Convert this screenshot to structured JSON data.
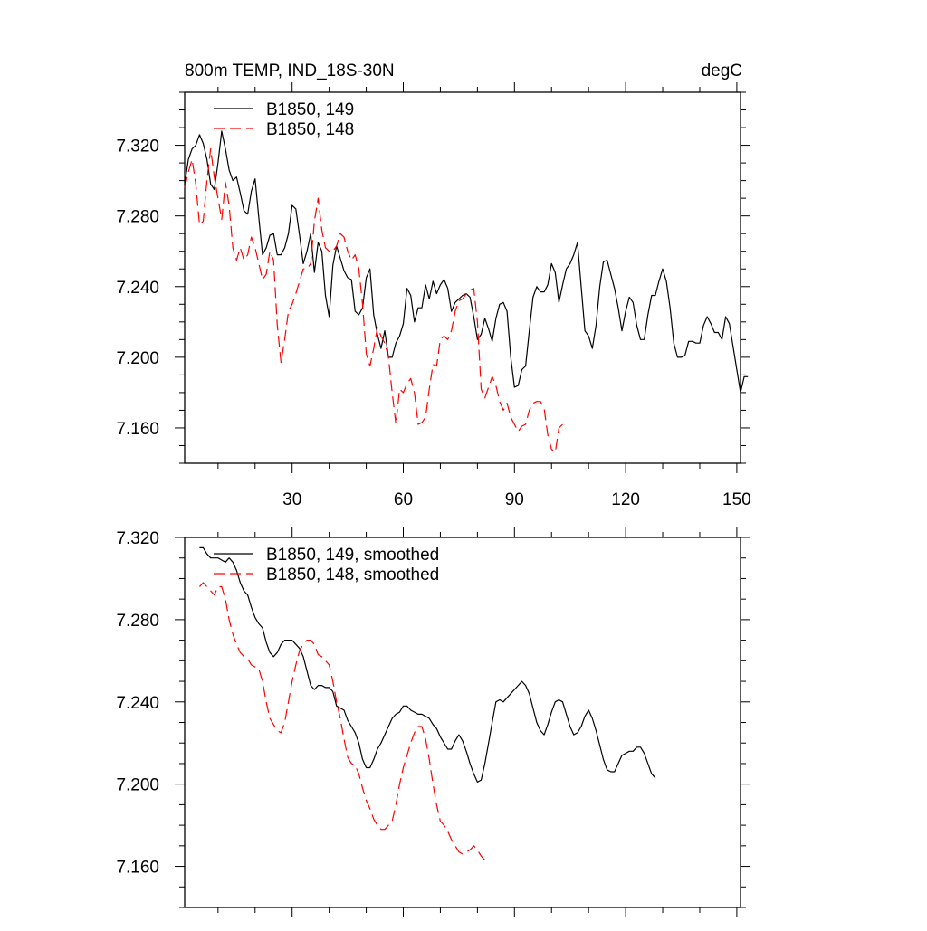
{
  "header": {
    "title_left": "800m TEMP, IND_18S-30N",
    "title_right": "degC"
  },
  "colors": {
    "series_149": "#000000",
    "series_148": "#ff0000",
    "axis": "#000000",
    "background": "#ffffff"
  },
  "chart_data": [
    {
      "type": "line",
      "title": "800m TEMP, IND_18S-30N",
      "units": "degC",
      "xlim": [
        1,
        151
      ],
      "ylim": [
        7.14,
        7.35
      ],
      "xticks": [
        30,
        60,
        90,
        120,
        150
      ],
      "xtick_labels": [
        "30",
        "60",
        "90",
        "120",
        "150"
      ],
      "yticks": [
        7.16,
        7.2,
        7.24,
        7.28,
        7.32
      ],
      "ytick_labels": [
        "7.160",
        "7.200",
        "7.240",
        "7.280",
        "7.320"
      ],
      "legend_position": "top-left",
      "grid": false,
      "series": [
        {
          "name": "B1850, 149",
          "color": "#000000",
          "dash": "solid",
          "x_start": 1,
          "values": [
            7.298,
            7.312,
            7.318,
            7.32,
            7.326,
            7.321,
            7.312,
            7.298,
            7.295,
            7.31,
            7.328,
            7.318,
            7.306,
            7.3,
            7.302,
            7.293,
            7.283,
            7.281,
            7.294,
            7.301,
            7.279,
            7.258,
            7.262,
            7.269,
            7.27,
            7.258,
            7.258,
            7.262,
            7.27,
            7.286,
            7.284,
            7.269,
            7.253,
            7.26,
            7.27,
            7.248,
            7.265,
            7.26,
            7.235,
            7.223,
            7.252,
            7.263,
            7.256,
            7.249,
            7.245,
            7.244,
            7.226,
            7.224,
            7.228,
            7.245,
            7.25,
            7.224,
            7.213,
            7.205,
            7.215,
            7.2,
            7.2,
            7.208,
            7.212,
            7.219,
            7.239,
            7.235,
            7.22,
            7.228,
            7.228,
            7.241,
            7.233,
            7.243,
            7.236,
            7.241,
            7.244,
            7.239,
            7.226,
            7.231,
            7.233,
            7.235,
            7.236,
            7.234,
            7.223,
            7.21,
            7.213,
            7.222,
            7.216,
            7.209,
            7.222,
            7.23,
            7.231,
            7.226,
            7.2,
            7.183,
            7.184,
            7.193,
            7.195,
            7.215,
            7.234,
            7.24,
            7.237,
            7.237,
            7.241,
            7.253,
            7.248,
            7.231,
            7.241,
            7.25,
            7.253,
            7.258,
            7.265,
            7.24,
            7.215,
            7.212,
            7.205,
            7.218,
            7.24,
            7.254,
            7.255,
            7.247,
            7.239,
            7.228,
            7.215,
            7.226,
            7.234,
            7.231,
            7.218,
            7.21,
            7.21,
            7.224,
            7.235,
            7.235,
            7.243,
            7.25,
            7.243,
            7.228,
            7.208,
            7.2,
            7.2,
            7.201,
            7.209,
            7.209,
            7.208,
            7.208,
            7.218,
            7.223,
            7.219,
            7.214,
            7.214,
            7.21,
            7.223,
            7.219,
            7.206,
            7.193,
            7.18,
            7.189,
            7.189
          ]
        },
        {
          "name": "B1850, 148",
          "color": "#ff0000",
          "dash": "dashed",
          "x_start": 1,
          "values": [
            7.296,
            7.305,
            7.312,
            7.298,
            7.275,
            7.277,
            7.3,
            7.318,
            7.302,
            7.29,
            7.278,
            7.299,
            7.286,
            7.262,
            7.255,
            7.262,
            7.255,
            7.258,
            7.268,
            7.262,
            7.253,
            7.244,
            7.247,
            7.26,
            7.255,
            7.218,
            7.197,
            7.21,
            7.226,
            7.23,
            7.236,
            7.243,
            7.25,
            7.25,
            7.253,
            7.277,
            7.29,
            7.272,
            7.262,
            7.26,
            7.26,
            7.263,
            7.27,
            7.268,
            7.26,
            7.255,
            7.258,
            7.25,
            7.23,
            7.202,
            7.195,
            7.205,
            7.217,
            7.212,
            7.208,
            7.2,
            7.18,
            7.162,
            7.182,
            7.18,
            7.185,
            7.188,
            7.18,
            7.162,
            7.163,
            7.166,
            7.182,
            7.196,
            7.195,
            7.21,
            7.212,
            7.21,
            7.215,
            7.226,
            7.232,
            7.233,
            7.236,
            7.238,
            7.239,
            7.22,
            7.182,
            7.177,
            7.183,
            7.189,
            7.184,
            7.175,
            7.17,
            7.174,
            7.166,
            7.162,
            7.158,
            7.161,
            7.162,
            7.17,
            7.174,
            7.175,
            7.175,
            7.171,
            7.156,
            7.148,
            7.146,
            7.16,
            7.162
          ]
        }
      ]
    },
    {
      "type": "line",
      "xlim": [
        1,
        151
      ],
      "ylim": [
        7.14,
        7.32
      ],
      "xticks": [
        30,
        60,
        90,
        120,
        150
      ],
      "yticks": [
        7.16,
        7.2,
        7.24,
        7.28,
        7.32
      ],
      "ytick_labels": [
        "7.160",
        "7.200",
        "7.240",
        "7.280",
        "7.320"
      ],
      "legend_position": "top-left",
      "grid": false,
      "series": [
        {
          "name": "B1850, 149, smoothed",
          "color": "#000000",
          "dash": "solid",
          "x_start": 5,
          "values": [
            7.315,
            7.315,
            7.312,
            7.31,
            7.31,
            7.31,
            7.309,
            7.308,
            7.31,
            7.308,
            7.304,
            7.298,
            7.294,
            7.292,
            7.286,
            7.281,
            7.278,
            7.276,
            7.269,
            7.264,
            7.262,
            7.264,
            7.268,
            7.27,
            7.27,
            7.27,
            7.268,
            7.266,
            7.262,
            7.255,
            7.248,
            7.246,
            7.248,
            7.248,
            7.247,
            7.247,
            7.245,
            7.238,
            7.237,
            7.236,
            7.231,
            7.228,
            7.225,
            7.22,
            7.212,
            7.208,
            7.208,
            7.212,
            7.217,
            7.22,
            7.224,
            7.228,
            7.232,
            7.234,
            7.235,
            7.238,
            7.238,
            7.236,
            7.235,
            7.234,
            7.234,
            7.233,
            7.232,
            7.229,
            7.227,
            7.223,
            7.22,
            7.217,
            7.217,
            7.221,
            7.224,
            7.221,
            7.216,
            7.21,
            7.205,
            7.201,
            7.202,
            7.21,
            7.22,
            7.23,
            7.24,
            7.241,
            7.24,
            7.242,
            7.244,
            7.246,
            7.248,
            7.25,
            7.248,
            7.244,
            7.237,
            7.23,
            7.226,
            7.224,
            7.229,
            7.235,
            7.24,
            7.241,
            7.24,
            7.234,
            7.228,
            7.224,
            7.225,
            7.228,
            7.233,
            7.236,
            7.232,
            7.226,
            7.219,
            7.212,
            7.207,
            7.206,
            7.206,
            7.21,
            7.214,
            7.215,
            7.216,
            7.216,
            7.218,
            7.218,
            7.215,
            7.21,
            7.205,
            7.203
          ]
        },
        {
          "name": "B1850, 148, smoothed",
          "color": "#ff0000",
          "dash": "dashed",
          "x_start": 5,
          "values": [
            7.296,
            7.298,
            7.296,
            7.294,
            7.292,
            7.296,
            7.296,
            7.29,
            7.28,
            7.273,
            7.268,
            7.264,
            7.262,
            7.261,
            7.258,
            7.257,
            7.256,
            7.25,
            7.24,
            7.232,
            7.229,
            7.226,
            7.225,
            7.23,
            7.24,
            7.25,
            7.258,
            7.265,
            7.268,
            7.27,
            7.27,
            7.268,
            7.263,
            7.262,
            7.26,
            7.258,
            7.25,
            7.24,
            7.232,
            7.222,
            7.213,
            7.21,
            7.209,
            7.205,
            7.198,
            7.192,
            7.188,
            7.183,
            7.18,
            7.178,
            7.178,
            7.18,
            7.182,
            7.19,
            7.2,
            7.208,
            7.214,
            7.22,
            7.225,
            7.228,
            7.228,
            7.222,
            7.212,
            7.2,
            7.19,
            7.182,
            7.18,
            7.177,
            7.173,
            7.17,
            7.167,
            7.166,
            7.167,
            7.168,
            7.17,
            7.168,
            7.165,
            7.163
          ]
        }
      ]
    }
  ]
}
